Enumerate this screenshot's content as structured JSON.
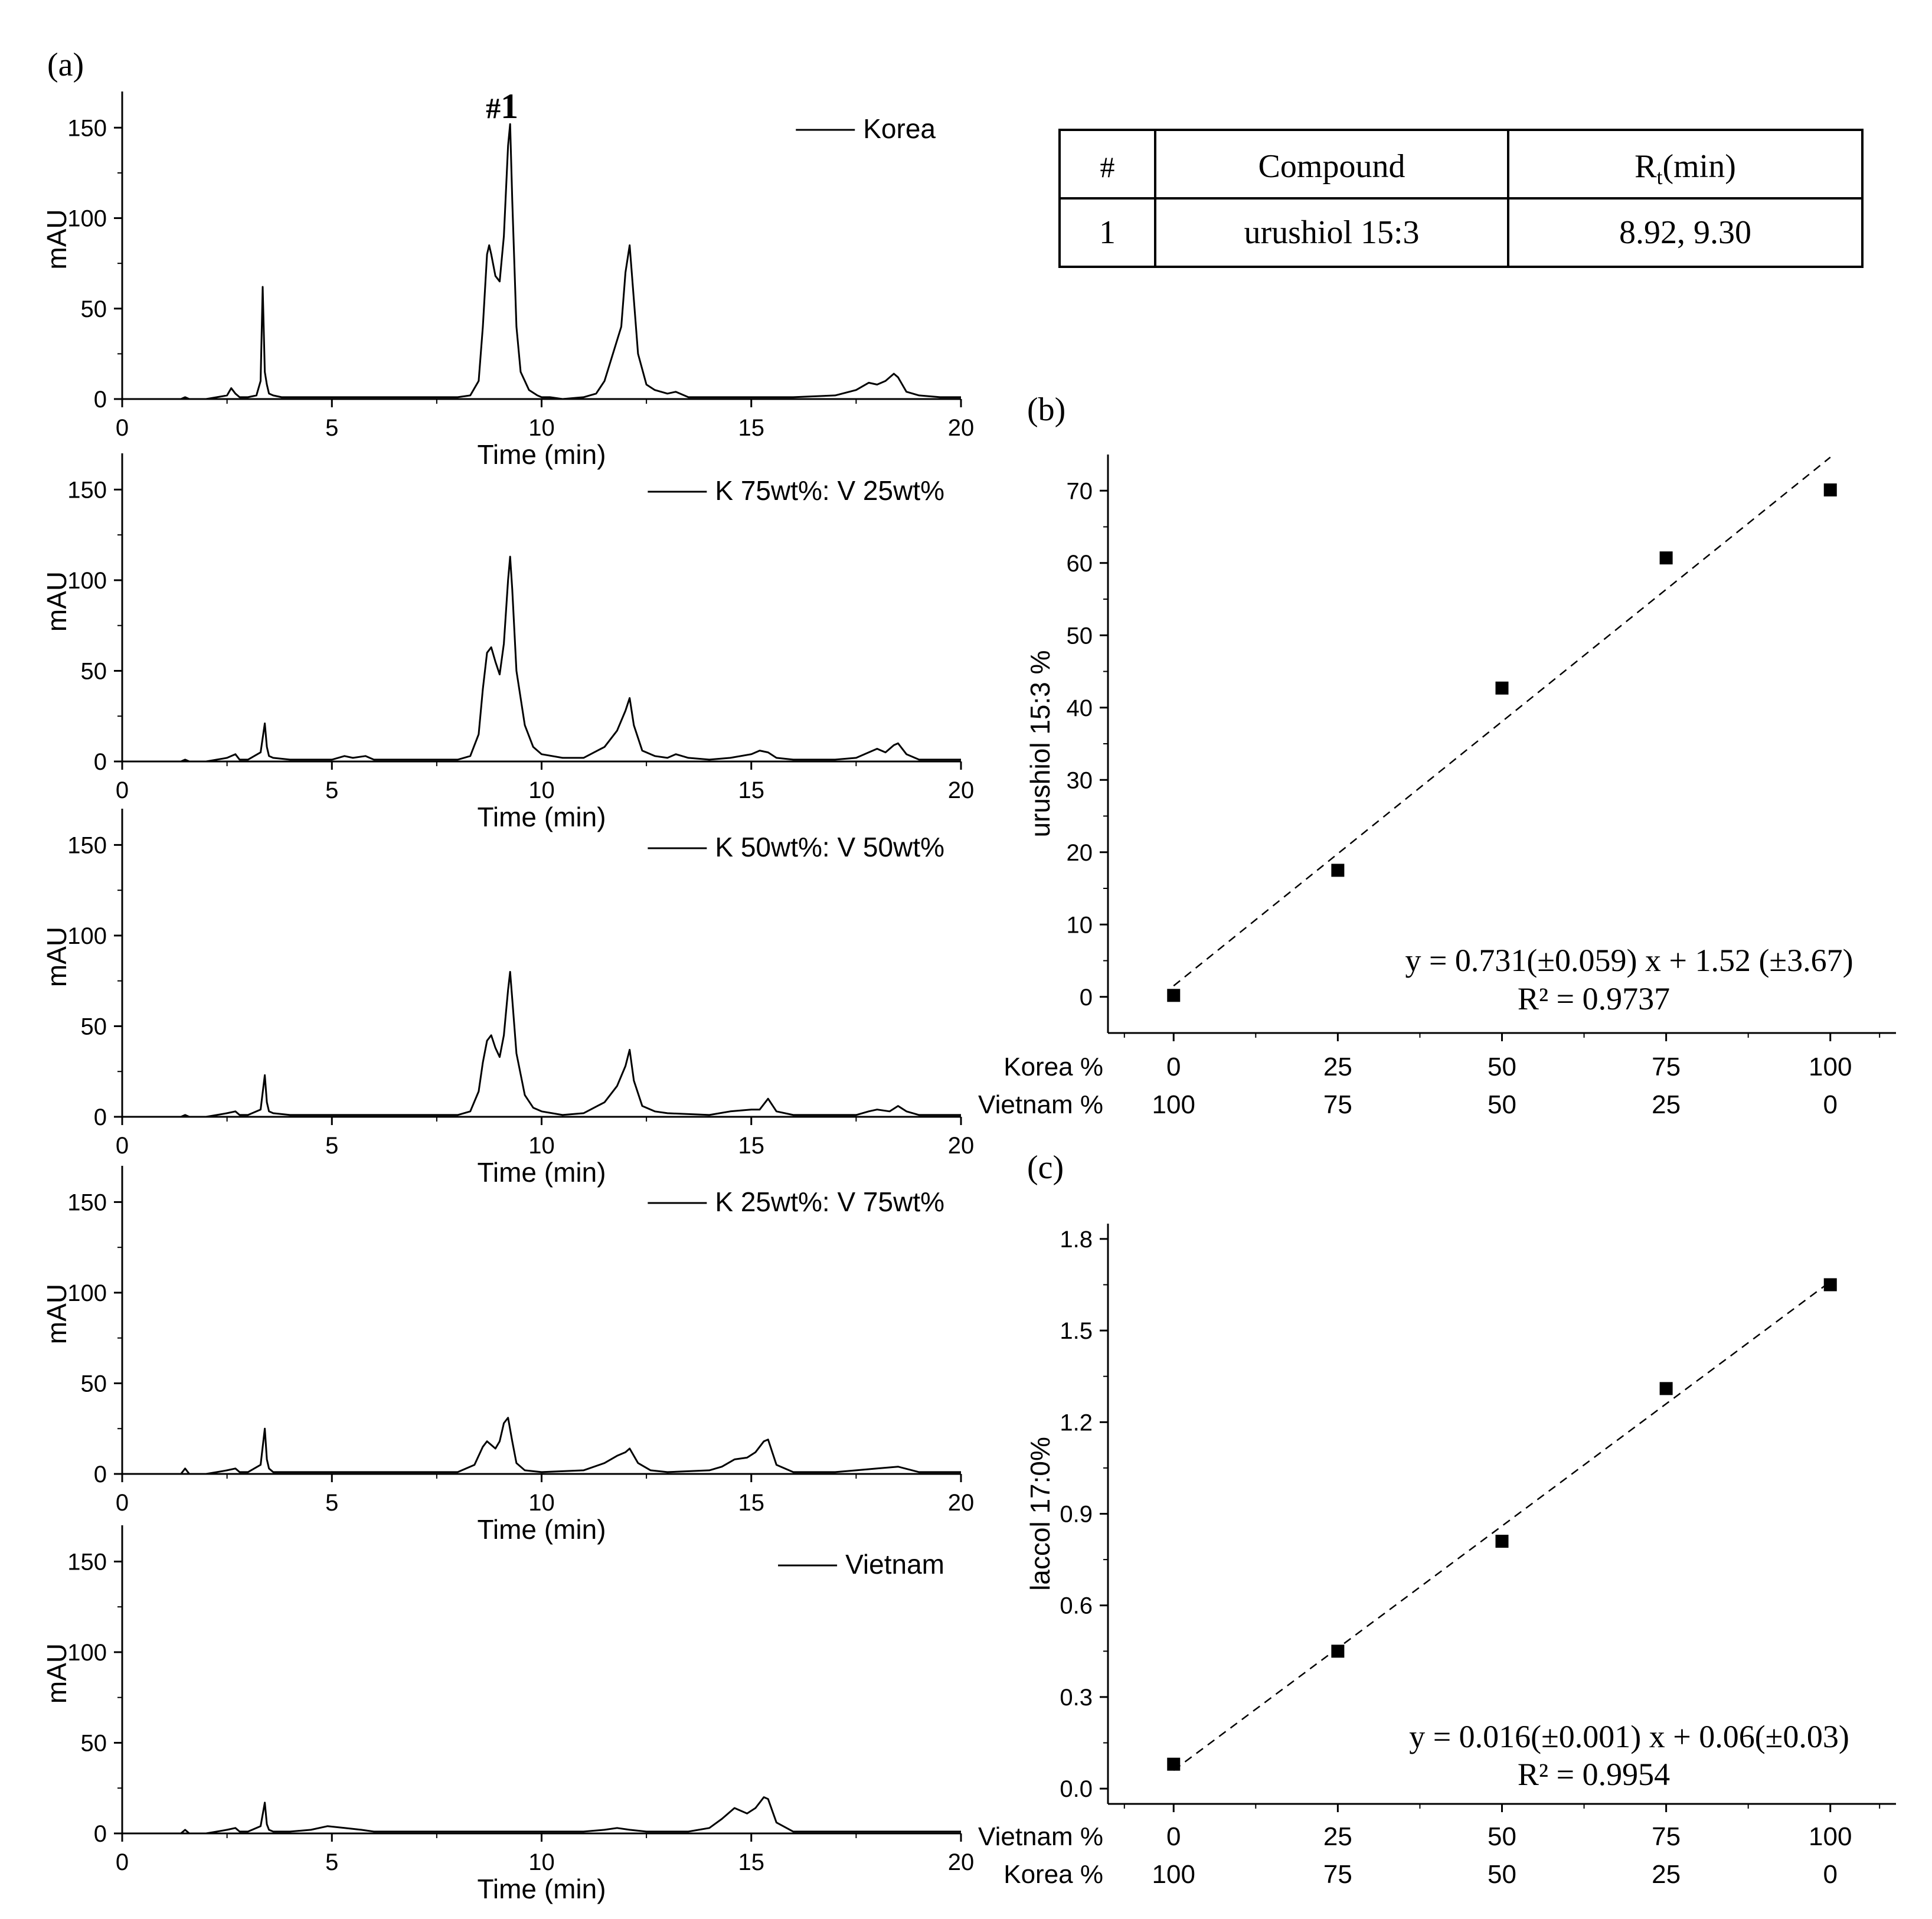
{
  "panel_labels": {
    "a": "(a)",
    "b": "(b)",
    "c": "(c)"
  },
  "peak_marker": {
    "hash": "#",
    "number": "1",
    "at_time": 9.2
  },
  "compound_table": {
    "headers": [
      "#",
      "Compound",
      "R",
      "t",
      "(min)"
    ],
    "rows": [
      {
        "num": "1",
        "compound": "urushiol 15:3",
        "rt": "8.92, 9.30"
      }
    ]
  },
  "chart_data": [
    {
      "type": "line",
      "legend": "Korea",
      "xlabel": "Time (min)",
      "ylabel": "mAU",
      "xlim": [
        0,
        20
      ],
      "ylim": [
        0,
        170
      ],
      "xticks": [
        "0",
        "5",
        "10",
        "15",
        "20"
      ],
      "yticks": [
        "0",
        "50",
        "100",
        "150"
      ],
      "x": [
        0,
        0.5,
        1,
        1.4,
        1.5,
        1.6,
        2,
        2.5,
        2.6,
        2.7,
        2.8,
        2.9,
        3,
        3.2,
        3.3,
        3.35,
        3.4,
        3.45,
        3.5,
        3.6,
        3.8,
        4,
        4.5,
        5,
        5.5,
        6,
        7,
        7.5,
        8,
        8.3,
        8.5,
        8.6,
        8.7,
        8.75,
        8.8,
        8.9,
        9,
        9.1,
        9.2,
        9.25,
        9.3,
        9.4,
        9.5,
        9.7,
        9.9,
        10,
        10.2,
        10.5,
        11,
        11.3,
        11.5,
        11.7,
        11.9,
        12,
        12.1,
        12.2,
        12.3,
        12.5,
        12.7,
        13,
        13.2,
        13.5,
        14,
        15,
        16,
        17,
        17.5,
        17.8,
        18,
        18.2,
        18.3,
        18.4,
        18.5,
        18.7,
        19,
        19.5,
        20
      ],
      "y": [
        0,
        0,
        0,
        0,
        1,
        0,
        0,
        2,
        6,
        3,
        1,
        1,
        1,
        2,
        10,
        62,
        15,
        8,
        3,
        2,
        1,
        1,
        1,
        1,
        1,
        1,
        1,
        1,
        1,
        2,
        10,
        40,
        80,
        85,
        80,
        68,
        65,
        90,
        140,
        152,
        110,
        40,
        15,
        5,
        2,
        1,
        1,
        0,
        1,
        3,
        10,
        25,
        40,
        70,
        85,
        55,
        25,
        8,
        5,
        3,
        4,
        1,
        1,
        1,
        1,
        2,
        5,
        9,
        8,
        10,
        12,
        14,
        12,
        4,
        2,
        1,
        1
      ]
    },
    {
      "type": "line",
      "legend": "K 75wt%: V 25wt%",
      "xlabel": "Time (min)",
      "ylabel": "mAU",
      "xlim": [
        0,
        20
      ],
      "ylim": [
        0,
        170
      ],
      "xticks": [
        "0",
        "5",
        "10",
        "15",
        "20"
      ],
      "yticks": [
        "0",
        "50",
        "100",
        "150"
      ],
      "x": [
        0,
        1,
        1.4,
        1.5,
        1.6,
        2,
        2.5,
        2.7,
        2.8,
        3,
        3.3,
        3.4,
        3.45,
        3.5,
        3.6,
        4,
        5,
        5.3,
        5.5,
        5.8,
        6,
        7,
        7.5,
        8,
        8.3,
        8.5,
        8.6,
        8.7,
        8.8,
        8.9,
        9,
        9.1,
        9.2,
        9.25,
        9.3,
        9.4,
        9.6,
        9.8,
        10,
        10.5,
        11,
        11.5,
        11.8,
        12,
        12.1,
        12.2,
        12.4,
        12.7,
        13,
        13.2,
        13.5,
        14,
        14.5,
        15,
        15.2,
        15.4,
        15.6,
        16,
        17,
        17.5,
        17.8,
        18,
        18.2,
        18.4,
        18.5,
        18.7,
        19,
        20
      ],
      "y": [
        0,
        0,
        0,
        1,
        0,
        0,
        2,
        4,
        1,
        1,
        5,
        21,
        8,
        3,
        2,
        1,
        1,
        3,
        2,
        3,
        1,
        1,
        1,
        1,
        3,
        15,
        40,
        60,
        63,
        55,
        48,
        65,
        100,
        113,
        95,
        50,
        20,
        8,
        4,
        2,
        2,
        8,
        17,
        28,
        35,
        20,
        6,
        3,
        2,
        4,
        2,
        1,
        2,
        4,
        6,
        5,
        2,
        1,
        1,
        2,
        5,
        7,
        5,
        9,
        10,
        4,
        1,
        1
      ]
    },
    {
      "type": "line",
      "legend": "K 50wt%: V 50wt%",
      "xlabel": "Time (min)",
      "ylabel": "mAU",
      "xlim": [
        0,
        20
      ],
      "ylim": [
        0,
        170
      ],
      "xticks": [
        "0",
        "5",
        "10",
        "15",
        "20"
      ],
      "yticks": [
        "0",
        "50",
        "100",
        "150"
      ],
      "x": [
        0,
        1,
        1.4,
        1.5,
        1.6,
        2,
        2.5,
        2.7,
        2.8,
        3,
        3.3,
        3.4,
        3.45,
        3.5,
        3.6,
        4,
        5,
        6,
        7,
        7.5,
        8,
        8.3,
        8.5,
        8.6,
        8.7,
        8.8,
        8.9,
        9,
        9.1,
        9.2,
        9.25,
        9.3,
        9.4,
        9.6,
        9.8,
        10,
        10.5,
        11,
        11.5,
        11.8,
        12,
        12.1,
        12.2,
        12.4,
        12.7,
        13,
        14,
        14.5,
        15,
        15.2,
        15.4,
        15.6,
        16,
        17,
        17.5,
        17.8,
        18,
        18.3,
        18.5,
        18.7,
        19,
        20
      ],
      "y": [
        0,
        0,
        0,
        1,
        0,
        0,
        2,
        3,
        1,
        1,
        4,
        23,
        8,
        3,
        2,
        1,
        1,
        1,
        1,
        1,
        1,
        3,
        14,
        30,
        42,
        45,
        38,
        33,
        45,
        70,
        80,
        65,
        35,
        12,
        5,
        3,
        1,
        2,
        8,
        17,
        28,
        37,
        20,
        6,
        3,
        2,
        1,
        3,
        4,
        4,
        10,
        3,
        1,
        1,
        1,
        3,
        4,
        3,
        6,
        3,
        1,
        1
      ]
    },
    {
      "type": "line",
      "legend": "K 25wt%: V 75wt%",
      "xlabel": "Time (min)",
      "ylabel": "mAU",
      "xlim": [
        0,
        20
      ],
      "ylim": [
        0,
        170
      ],
      "xticks": [
        "0",
        "5",
        "10",
        "15",
        "20"
      ],
      "yticks": [
        "0",
        "50",
        "100",
        "150"
      ],
      "x": [
        0,
        1,
        1.4,
        1.5,
        1.6,
        2,
        2.5,
        2.7,
        2.8,
        3,
        3.3,
        3.4,
        3.45,
        3.5,
        3.6,
        4,
        5,
        6,
        7,
        8,
        8.4,
        8.6,
        8.7,
        8.8,
        8.9,
        9,
        9.1,
        9.2,
        9.3,
        9.4,
        9.6,
        10,
        11,
        11.5,
        11.8,
        12,
        12.1,
        12.3,
        12.6,
        13,
        14,
        14.3,
        14.6,
        14.9,
        15.1,
        15.3,
        15.4,
        15.6,
        16,
        17,
        17.5,
        18,
        18.5,
        19,
        20
      ],
      "y": [
        0,
        0,
        0,
        3,
        0,
        0,
        2,
        3,
        1,
        1,
        5,
        25,
        8,
        3,
        1,
        1,
        1,
        1,
        1,
        1,
        5,
        15,
        18,
        16,
        14,
        18,
        28,
        31,
        18,
        6,
        2,
        1,
        2,
        6,
        10,
        12,
        14,
        6,
        2,
        1,
        2,
        4,
        8,
        9,
        12,
        18,
        19,
        5,
        1,
        1,
        2,
        3,
        4,
        1,
        1
      ]
    },
    {
      "type": "line",
      "legend": "Vietnam",
      "xlabel": "Time (min)",
      "ylabel": "mAU",
      "xlim": [
        0,
        20
      ],
      "ylim": [
        0,
        170
      ],
      "xticks": [
        "0",
        "5",
        "10",
        "15",
        "20"
      ],
      "yticks": [
        "0",
        "50",
        "100",
        "150"
      ],
      "x": [
        0,
        1,
        1.4,
        1.5,
        1.6,
        2,
        2.5,
        2.7,
        2.8,
        3,
        3.3,
        3.4,
        3.45,
        3.5,
        3.6,
        4,
        4.5,
        4.9,
        5.3,
        5.7,
        6,
        7,
        8,
        9,
        10,
        11,
        11.5,
        11.8,
        12.1,
        12.5,
        13,
        13.5,
        14,
        14.3,
        14.6,
        14.9,
        15.1,
        15.3,
        15.4,
        15.6,
        16,
        17,
        18,
        19,
        20
      ],
      "y": [
        0,
        0,
        0,
        2,
        0,
        0,
        2,
        3,
        1,
        1,
        4,
        17,
        5,
        2,
        1,
        1,
        2,
        4,
        3,
        2,
        1,
        1,
        1,
        1,
        1,
        1,
        2,
        3,
        2,
        1,
        1,
        1,
        3,
        8,
        14,
        11,
        14,
        20,
        19,
        6,
        1,
        1,
        1,
        1,
        1
      ]
    },
    {
      "type": "scatter",
      "ylabel": "urushiol 15:3 %",
      "x_axis_rows": [
        {
          "label": "Korea %",
          "ticks": [
            "0",
            "25",
            "50",
            "75",
            "100"
          ]
        },
        {
          "label": "Vietnam %",
          "ticks": [
            "100",
            "75",
            "50",
            "25",
            "0"
          ]
        }
      ],
      "xlim": [
        -10,
        110
      ],
      "ylim": [
        -5,
        75
      ],
      "yticks": [
        "0",
        "10",
        "20",
        "30",
        "40",
        "50",
        "60",
        "70"
      ],
      "x": [
        0,
        25,
        50,
        75,
        100
      ],
      "y": [
        0.2,
        17.5,
        42.7,
        60.7,
        70.1
      ],
      "fit": {
        "slope": 0.731,
        "intercept": 1.52,
        "x_range": [
          0,
          100
        ]
      },
      "equation": "y = 0.731(±0.059) x + 1.52 (±3.67)",
      "r2": "R² = 0.9737"
    },
    {
      "type": "scatter",
      "ylabel": "laccol 17:0%",
      "x_axis_rows": [
        {
          "label": "Vietnam %",
          "ticks": [
            "0",
            "25",
            "50",
            "75",
            "100"
          ]
        },
        {
          "label": "Korea %",
          "ticks": [
            "100",
            "75",
            "50",
            "25",
            "0"
          ]
        }
      ],
      "xlim": [
        -10,
        110
      ],
      "ylim": [
        -0.05,
        1.85
      ],
      "yticks": [
        "0.0",
        "0.3",
        "0.6",
        "0.9",
        "1.2",
        "1.5",
        "1.8"
      ],
      "x": [
        0,
        25,
        50,
        75,
        100
      ],
      "y": [
        0.08,
        0.45,
        0.81,
        1.31,
        1.65
      ],
      "fit": {
        "slope": 0.016,
        "intercept": 0.06,
        "x_range": [
          0,
          100
        ]
      },
      "equation": "y = 0.016(±0.001) x + 0.06(±0.03)",
      "r2": "R² = 0.9954"
    }
  ]
}
